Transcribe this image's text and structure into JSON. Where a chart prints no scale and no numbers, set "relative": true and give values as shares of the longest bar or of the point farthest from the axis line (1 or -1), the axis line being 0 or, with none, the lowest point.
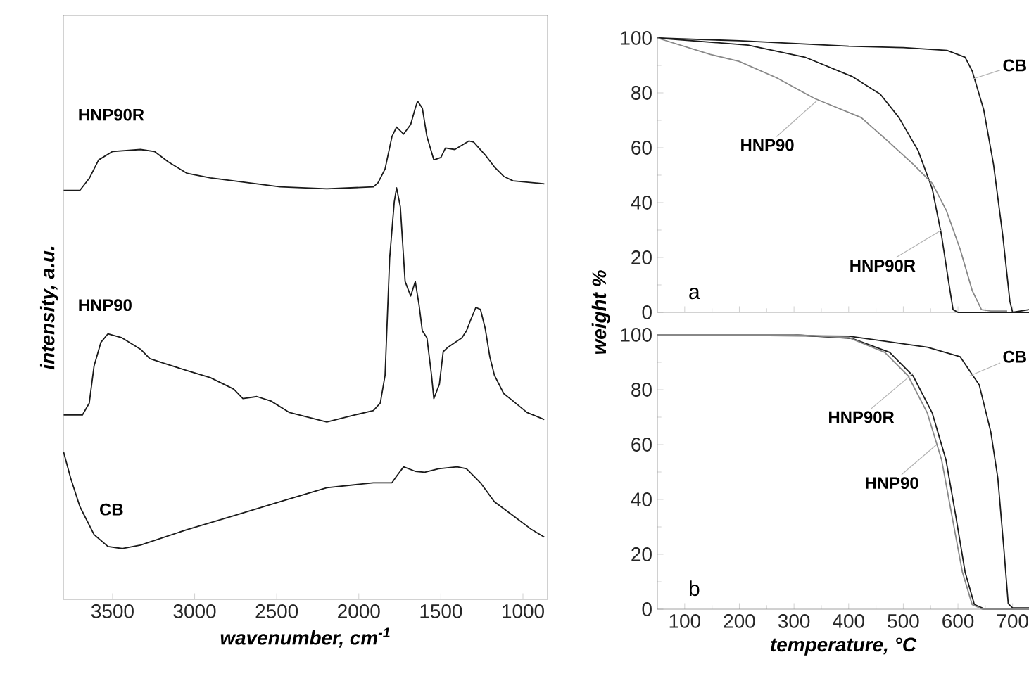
{
  "chart_data": [
    {
      "type": "line",
      "relative": true,
      "xlabel": "wavenumber, cm$^{-1}$",
      "ylabel": "intensity, a.u.",
      "xlim": [
        3800,
        850
      ],
      "xticks": [
        3500,
        3000,
        2500,
        2000,
        1500,
        1000
      ],
      "tick_labels": "x",
      "grid": false,
      "legend": false,
      "marker": "none",
      "line_style": "solid",
      "series": [
        {
          "name": "HNP90R",
          "color": "#1a1a1a",
          "x": [
            3798,
            3699,
            3642,
            3585,
            3500,
            3330,
            3245,
            3160,
            3046,
            2904,
            2762,
            2479,
            2195,
            1911,
            1883,
            1840,
            1798,
            1770,
            1727,
            1684,
            1656,
            1642,
            1613,
            1585,
            1543,
            1500,
            1472,
            1415,
            1330,
            1301,
            1230,
            1174,
            1117,
            1060,
            870
          ],
          "values": [
            0.821,
            0.821,
            0.845,
            0.882,
            0.899,
            0.903,
            0.899,
            0.878,
            0.855,
            0.846,
            0.84,
            0.828,
            0.824,
            0.828,
            0.836,
            0.864,
            0.929,
            0.948,
            0.934,
            0.953,
            0.986,
            1.0,
            0.986,
            0.929,
            0.882,
            0.887,
            0.906,
            0.903,
            0.92,
            0.918,
            0.892,
            0.868,
            0.849,
            0.84,
            0.834
          ]
        },
        {
          "name": "HNP90",
          "color": "#1a1a1a",
          "x": [
            3798,
            3684,
            3642,
            3613,
            3571,
            3528,
            3443,
            3330,
            3273,
            3188,
            3046,
            2904,
            2762,
            2706,
            2621,
            2535,
            2422,
            2195,
            2025,
            1911,
            1869,
            1840,
            1812,
            1784,
            1770,
            1747,
            1718,
            1684,
            1656,
            1633,
            1613,
            1585,
            1557,
            1543,
            1509,
            1486,
            1457,
            1372,
            1344,
            1316,
            1287,
            1259,
            1230,
            1202,
            1174,
            1117,
            1060,
            975,
            870
          ],
          "values": [
            0.37,
            0.37,
            0.394,
            0.468,
            0.516,
            0.533,
            0.525,
            0.502,
            0.483,
            0.474,
            0.459,
            0.445,
            0.422,
            0.403,
            0.407,
            0.398,
            0.375,
            0.356,
            0.37,
            0.379,
            0.394,
            0.45,
            0.685,
            0.798,
            0.826,
            0.788,
            0.638,
            0.609,
            0.638,
            0.591,
            0.539,
            0.525,
            0.45,
            0.403,
            0.432,
            0.497,
            0.506,
            0.525,
            0.539,
            0.563,
            0.586,
            0.582,
            0.544,
            0.487,
            0.45,
            0.413,
            0.398,
            0.375,
            0.361
          ]
        },
        {
          "name": "CB",
          "color": "#1a1a1a",
          "x": [
            3798,
            3755,
            3699,
            3613,
            3528,
            3443,
            3330,
            3046,
            2762,
            2479,
            2195,
            1911,
            1798,
            1770,
            1727,
            1656,
            1599,
            1514,
            1401,
            1344,
            1259,
            1174,
            1060,
            947,
            870
          ],
          "values": [
            0.295,
            0.243,
            0.186,
            0.13,
            0.106,
            0.102,
            0.109,
            0.14,
            0.168,
            0.196,
            0.224,
            0.234,
            0.234,
            0.247,
            0.266,
            0.257,
            0.255,
            0.262,
            0.266,
            0.262,
            0.234,
            0.196,
            0.168,
            0.14,
            0.125
          ]
        }
      ]
    },
    {
      "type": "line",
      "ylabel": "weight %",
      "xlim": [
        50,
        730
      ],
      "ylim": [
        0,
        100
      ],
      "xticks": [
        100,
        200,
        300,
        400,
        500,
        600,
        700
      ],
      "yticks": [
        0,
        20,
        40,
        60,
        80,
        100
      ],
      "tick_labels": "y",
      "grid": false,
      "legend": false,
      "marker": "none",
      "line_style": "solid",
      "annotations": [
        "a",
        {
          "text": "CB",
          "x": 626,
          "y": 85
        },
        {
          "text": "HNP90",
          "x": 341,
          "y": 77
        },
        {
          "text": "HNP90R",
          "x": 570,
          "y": 30
        }
      ],
      "series": [
        {
          "color": "#1a1a1a",
          "x": [
            50,
            200,
            400,
            500,
            580,
            613,
            626,
            647,
            665,
            682,
            695,
            700,
            730
          ],
          "values": [
            100,
            99,
            97,
            96.5,
            95.5,
            93,
            88,
            74,
            54,
            28,
            4,
            0,
            1
          ]
        },
        {
          "color": "#1a1a1a",
          "x": [
            50,
            216,
            320,
            406,
            458,
            492,
            527,
            553,
            570,
            583,
            591,
            600,
            730
          ],
          "values": [
            100,
            97.4,
            93,
            86,
            79.5,
            71,
            59,
            45,
            28,
            11,
            1,
            0,
            0
          ]
        },
        {
          "color": "#888888",
          "x": [
            50,
            147,
            199,
            268,
            337,
            423,
            474,
            518,
            553,
            579,
            604,
            626,
            643,
            660,
            690
          ],
          "values": [
            100,
            94,
            91.5,
            85.5,
            78,
            71,
            62,
            54,
            47,
            37,
            23,
            8,
            1,
            0.5,
            0.5
          ]
        }
      ]
    },
    {
      "type": "line",
      "xlabel": "temperature, °C",
      "xlim": [
        50,
        730
      ],
      "ylim": [
        0,
        100
      ],
      "xticks": [
        100,
        200,
        300,
        400,
        500,
        600,
        700
      ],
      "yticks": [
        0,
        20,
        40,
        60,
        80,
        100
      ],
      "grid": false,
      "legend": false,
      "marker": "none",
      "line_style": "solid",
      "annotations": [
        "b",
        {
          "text": "CB",
          "x": 621,
          "y": 85
        },
        {
          "text": "HNP90R",
          "x": 518,
          "y": 86
        },
        {
          "text": "HNP90",
          "x": 561,
          "y": 60
        }
      ],
      "series": [
        {
          "color": "#1a1a1a",
          "x": [
            50,
            400,
            544,
            604,
            639,
            660,
            673,
            684,
            692,
            700,
            730
          ],
          "values": [
            100,
            99.5,
            95.5,
            92,
            81.7,
            64.7,
            47.7,
            22,
            2,
            0.5,
            0.5
          ]
        },
        {
          "color": "#1a1a1a",
          "x": [
            50,
            300,
            406,
            475,
            518,
            553,
            578,
            596,
            613,
            630,
            650,
            730
          ],
          "values": [
            100,
            100,
            98.7,
            93.6,
            85,
            71.5,
            54.5,
            34,
            13.6,
            1.7,
            0,
            0
          ]
        },
        {
          "color": "#888888",
          "x": [
            50,
            300,
            400,
            466,
            509,
            544,
            570,
            589,
            608,
            626,
            645,
            730
          ],
          "values": [
            100,
            100,
            99,
            93.6,
            85,
            71.5,
            54.5,
            34,
            13.6,
            1.7,
            0,
            0
          ]
        }
      ]
    }
  ]
}
